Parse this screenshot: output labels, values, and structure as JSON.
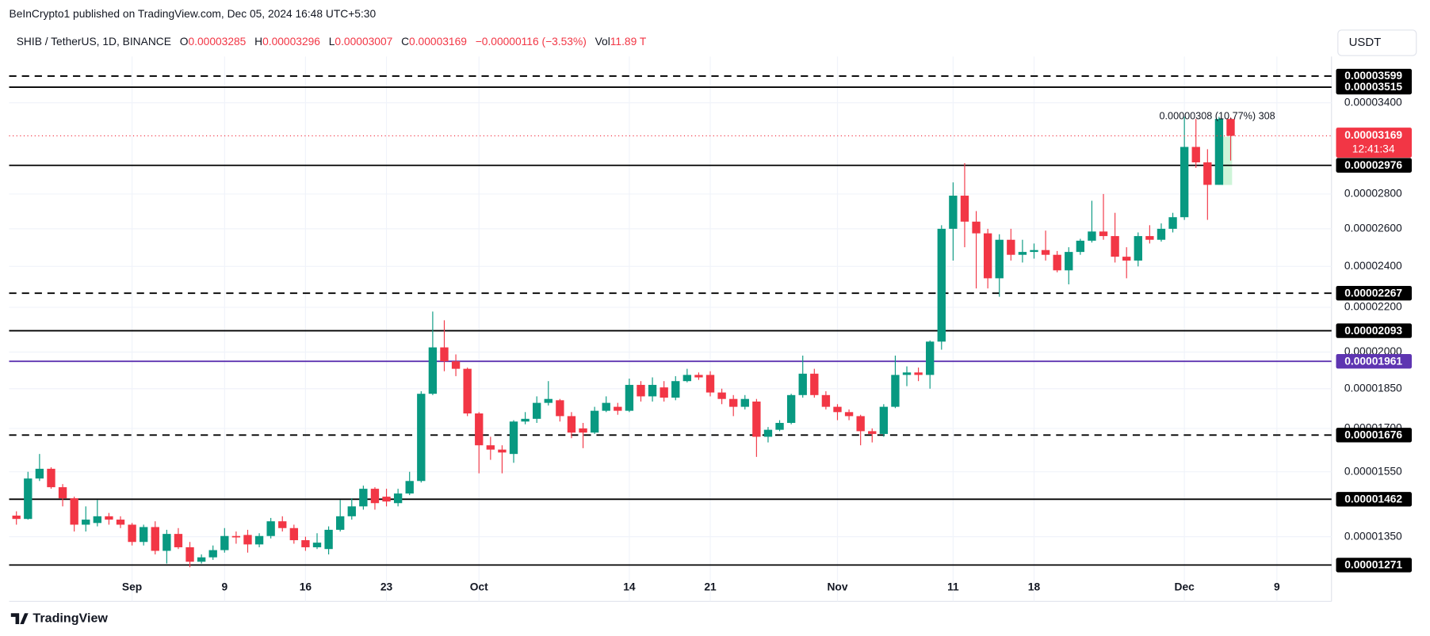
{
  "header": {
    "publisher": "BeInCrypto1 published on TradingView.com, Dec 05, 2024 16:48 UTC+5:30"
  },
  "chart_data": {
    "type": "candlestick",
    "symbol": "SHIB / TetherUS, 1D, BINANCE",
    "ohlc_labels": [
      "O",
      "H",
      "L",
      "C"
    ],
    "change": "−0.00000116 (−3.53%)",
    "volume_label": "Vol",
    "volume": "11.89 T",
    "currency": "USDT",
    "countdown": "12:41:34",
    "annotation": "0.00000308 (10.77%) 308",
    "categories": [
      null,
      null,
      null,
      null,
      null,
      null,
      null,
      null,
      null,
      null,
      "Sep",
      null,
      null,
      null,
      null,
      null,
      null,
      null,
      "9",
      null,
      null,
      null,
      null,
      null,
      null,
      "16",
      null,
      null,
      null,
      null,
      null,
      null,
      "23",
      null,
      null,
      null,
      null,
      null,
      null,
      null,
      "Oct",
      null,
      null,
      null,
      null,
      null,
      null,
      null,
      null,
      null,
      null,
      null,
      null,
      "14",
      null,
      null,
      null,
      null,
      null,
      null,
      "21",
      null,
      null,
      null,
      null,
      null,
      null,
      null,
      null,
      null,
      null,
      "Nov",
      null,
      null,
      null,
      null,
      null,
      null,
      null,
      null,
      null,
      "11",
      null,
      null,
      null,
      null,
      null,
      null,
      "18",
      null,
      null,
      null,
      null,
      null,
      null,
      null,
      null,
      null,
      null,
      null,
      null,
      "Dec",
      null,
      null,
      null,
      null,
      null,
      null,
      null,
      "9"
    ],
    "open": [
      1.412e-05,
      1.402e-05,
      1.528e-05,
      1.56e-05,
      1.5e-05,
      1.465e-05,
      1.385e-05,
      1.39e-05,
      1.41e-05,
      1.4e-05,
      1.385e-05,
      1.335e-05,
      1.378e-05,
      1.31e-05,
      1.358e-05,
      1.32e-05,
      1.28e-05,
      1.292e-05,
      1.312e-05,
      1.352e-05,
      1.355e-05,
      1.328e-05,
      1.352e-05,
      1.395e-05,
      1.375e-05,
      1.34e-05,
      1.32e-05,
      1.315e-05,
      1.37e-05,
      1.41e-05,
      1.44e-05,
      1.495e-05,
      1.47e-05,
      1.45e-05,
      1.48e-05,
      1.52e-05,
      1.83e-05,
      2.02e-05,
      1.961e-05,
      1.93e-05,
      1.755e-05,
      1.64e-05,
      1.625e-05,
      1.61e-05,
      1.725e-05,
      1.735e-05,
      1.795e-05,
      1.805e-05,
      1.745e-05,
      1.7e-05,
      1.685e-05,
      1.765e-05,
      1.78e-05,
      1.765e-05,
      1.865e-05,
      1.82e-05,
      1.855e-05,
      1.815e-05,
      1.88e-05,
      1.905e-05,
      1.905e-05,
      1.835e-05,
      1.81e-05,
      1.78e-05,
      1.8e-05,
      1.67e-05,
      1.695e-05,
      1.72e-05,
      1.825e-05,
      1.91e-05,
      1.825e-05,
      1.78e-05,
      1.76e-05,
      1.745e-05,
      1.69e-05,
      1.68e-05,
      1.78e-05,
      1.905e-05,
      1.915e-05,
      1.905e-05,
      2.045e-05,
      2.6e-05,
      2.79e-05,
      2.64e-05,
      2.575e-05,
      2.34e-05,
      2.54e-05,
      2.46e-05,
      2.475e-05,
      2.485e-05,
      2.46e-05,
      2.38e-05,
      2.475e-05,
      2.535e-05,
      2.585e-05,
      2.56e-05,
      2.45e-05,
      2.43e-05,
      2.56e-05,
      2.54e-05,
      2.6e-05,
      2.665e-05,
      3.095e-05,
      2.995e-05,
      2.855e-05,
      3.285e-05,
      null,
      null,
      null,
      null
    ],
    "high": [
      1.425e-05,
      1.55e-05,
      1.61e-05,
      1.565e-05,
      1.51e-05,
      1.47e-05,
      1.44e-05,
      1.46e-05,
      1.42e-05,
      1.41e-05,
      1.39e-05,
      1.385e-05,
      1.395e-05,
      1.37e-05,
      1.375e-05,
      1.335e-05,
      1.3e-05,
      1.325e-05,
      1.375e-05,
      1.365e-05,
      1.37e-05,
      1.36e-05,
      1.405e-05,
      1.41e-05,
      1.385e-05,
      1.35e-05,
      1.36e-05,
      1.38e-05,
      1.46e-05,
      1.465e-05,
      1.505e-05,
      1.5e-05,
      1.495e-05,
      1.495e-05,
      1.55e-05,
      1.84e-05,
      2.18e-05,
      2.14e-05,
      1.99e-05,
      1.935e-05,
      1.76e-05,
      1.67e-05,
      1.64e-05,
      1.73e-05,
      1.76e-05,
      1.82e-05,
      1.88e-05,
      1.81e-05,
      1.76e-05,
      1.72e-05,
      1.78e-05,
      1.82e-05,
      1.795e-05,
      1.89e-05,
      1.88e-05,
      1.895e-05,
      1.88e-05,
      1.9e-05,
      1.93e-05,
      1.915e-05,
      1.92e-05,
      1.85e-05,
      1.825e-05,
      1.825e-05,
      1.81e-05,
      1.705e-05,
      1.73e-05,
      1.83e-05,
      1.985e-05,
      1.93e-05,
      1.84e-05,
      1.79e-05,
      1.77e-05,
      1.75e-05,
      1.7e-05,
      1.79e-05,
      1.985e-05,
      1.94e-05,
      1.935e-05,
      2.05e-05,
      2.62e-05,
      2.87e-05,
      2.99e-05,
      2.7e-05,
      2.6e-05,
      2.57e-05,
      2.6e-05,
      2.54e-05,
      2.52e-05,
      2.59e-05,
      2.48e-05,
      2.5e-05,
      2.545e-05,
      2.76e-05,
      2.8e-05,
      2.69e-05,
      2.5e-05,
      2.58e-05,
      2.62e-05,
      2.63e-05,
      2.69e-05,
      3.3e-05,
      3.285e-05,
      3.08e-05,
      3.3e-05,
      3.296e-05,
      null,
      null,
      null,
      null
    ],
    "low": [
      1.385e-05,
      1.4e-05,
      1.52e-05,
      1.495e-05,
      1.44e-05,
      1.365e-05,
      1.365e-05,
      1.38e-05,
      1.385e-05,
      1.375e-05,
      1.325e-05,
      1.325e-05,
      1.3e-05,
      1.275e-05,
      1.315e-05,
      1.265e-05,
      1.275e-05,
      1.285e-05,
      1.305e-05,
      1.33e-05,
      1.305e-05,
      1.32e-05,
      1.345e-05,
      1.365e-05,
      1.33e-05,
      1.31e-05,
      1.315e-05,
      1.3e-05,
      1.365e-05,
      1.4e-05,
      1.43e-05,
      1.43e-05,
      1.44e-05,
      1.44e-05,
      1.475e-05,
      1.515e-05,
      1.825e-05,
      1.92e-05,
      1.9e-05,
      1.745e-05,
      1.545e-05,
      1.59e-05,
      1.545e-05,
      1.58e-05,
      1.715e-05,
      1.72e-05,
      1.785e-05,
      1.725e-05,
      1.665e-05,
      1.63e-05,
      1.68e-05,
      1.76e-05,
      1.75e-05,
      1.76e-05,
      1.8e-05,
      1.8e-05,
      1.8e-05,
      1.805e-05,
      1.875e-05,
      1.885e-05,
      1.82e-05,
      1.79e-05,
      1.745e-05,
      1.77e-05,
      1.6e-05,
      1.65e-05,
      1.69e-05,
      1.715e-05,
      1.815e-05,
      1.815e-05,
      1.77e-05,
      1.73e-05,
      1.73e-05,
      1.64e-05,
      1.65e-05,
      1.67e-05,
      1.775e-05,
      1.86e-05,
      1.88e-05,
      1.85e-05,
      2.01e-05,
      2.43e-05,
      2.5e-05,
      2.29e-05,
      2.29e-05,
      2.25e-05,
      2.43e-05,
      2.42e-05,
      2.44e-05,
      2.43e-05,
      2.37e-05,
      2.31e-05,
      2.46e-05,
      2.525e-05,
      2.54e-05,
      2.42e-05,
      2.34e-05,
      2.4e-05,
      2.52e-05,
      2.53e-05,
      2.58e-05,
      2.65e-05,
      2.96e-05,
      2.65e-05,
      2.855e-05,
      3.007e-05,
      null,
      null,
      null,
      null
    ],
    "close": [
      1.402e-05,
      1.528e-05,
      1.56e-05,
      1.5e-05,
      1.465e-05,
      1.385e-05,
      1.4e-05,
      1.41e-05,
      1.4e-05,
      1.385e-05,
      1.335e-05,
      1.378e-05,
      1.31e-05,
      1.358e-05,
      1.32e-05,
      1.28e-05,
      1.292e-05,
      1.312e-05,
      1.352e-05,
      1.348e-05,
      1.328e-05,
      1.352e-05,
      1.395e-05,
      1.375e-05,
      1.34e-05,
      1.32e-05,
      1.333e-05,
      1.37e-05,
      1.41e-05,
      1.44e-05,
      1.495e-05,
      1.45e-05,
      1.455e-05,
      1.48e-05,
      1.52e-05,
      1.83e-05,
      2.02e-05,
      1.961e-05,
      1.93e-05,
      1.755e-05,
      1.64e-05,
      1.625e-05,
      1.615e-05,
      1.725e-05,
      1.735e-05,
      1.795e-05,
      1.81e-05,
      1.745e-05,
      1.685e-05,
      1.685e-05,
      1.765e-05,
      1.795e-05,
      1.765e-05,
      1.865e-05,
      1.82e-05,
      1.865e-05,
      1.815e-05,
      1.88e-05,
      1.905e-05,
      1.895e-05,
      1.835e-05,
      1.81e-05,
      1.78e-05,
      1.81e-05,
      1.67e-05,
      1.695e-05,
      1.72e-05,
      1.825e-05,
      1.91e-05,
      1.825e-05,
      1.78e-05,
      1.76e-05,
      1.745e-05,
      1.69e-05,
      1.68e-05,
      1.78e-05,
      1.905e-05,
      1.915e-05,
      1.905e-05,
      2.045e-05,
      2.6e-05,
      2.79e-05,
      2.64e-05,
      2.575e-05,
      2.34e-05,
      2.54e-05,
      2.46e-05,
      2.475e-05,
      2.485e-05,
      2.46e-05,
      2.38e-05,
      2.475e-05,
      2.535e-05,
      2.585e-05,
      2.56e-05,
      2.45e-05,
      2.43e-05,
      2.56e-05,
      2.54e-05,
      2.6e-05,
      2.665e-05,
      3.095e-05,
      2.995e-05,
      2.855e-05,
      3.285e-05,
      3.169e-05,
      null,
      null,
      null,
      null
    ],
    "up_color": "#089981",
    "down_color": "#f23645",
    "log_scale": true,
    "grid": true,
    "ylim": [
      1.259e-05,
      3.752e-05
    ],
    "yticks": [
      {
        "value": 3.4e-05,
        "label": "0.00003400"
      },
      {
        "value": 2.8e-05,
        "label": "0.00002800"
      },
      {
        "value": 2.6e-05,
        "label": "0.00002600"
      },
      {
        "value": 2.4e-05,
        "label": "0.00002400"
      },
      {
        "value": 2.2e-05,
        "label": "0.00002200"
      },
      {
        "value": 2e-05,
        "label": "0.00002000"
      },
      {
        "value": 1.85e-05,
        "label": "0.00001850"
      },
      {
        "value": 1.7e-05,
        "label": "0.00001700"
      },
      {
        "value": 1.55e-05,
        "label": "0.00001550"
      },
      {
        "value": 1.35e-05,
        "label": "0.00001350"
      }
    ],
    "levels": [
      {
        "value": 3.599e-05,
        "style": "dashed",
        "color": "#000000"
      },
      {
        "value": 3.515e-05,
        "style": "solid",
        "color": "#000000"
      },
      {
        "value": 2.976e-05,
        "style": "solid",
        "color": "#000000"
      },
      {
        "value": 2.267e-05,
        "style": "dashed",
        "color": "#000000"
      },
      {
        "value": 2.093e-05,
        "style": "solid",
        "color": "#000000"
      },
      {
        "value": 1.961e-05,
        "style": "solid",
        "color": "#5e35b1"
      },
      {
        "value": 1.676e-05,
        "style": "dashed",
        "color": "#000000"
      },
      {
        "value": 1.462e-05,
        "style": "solid",
        "color": "#000000"
      },
      {
        "value": 1.271e-05,
        "style": "solid",
        "color": "#000000"
      }
    ]
  },
  "footer": {
    "brand": "TradingView"
  }
}
